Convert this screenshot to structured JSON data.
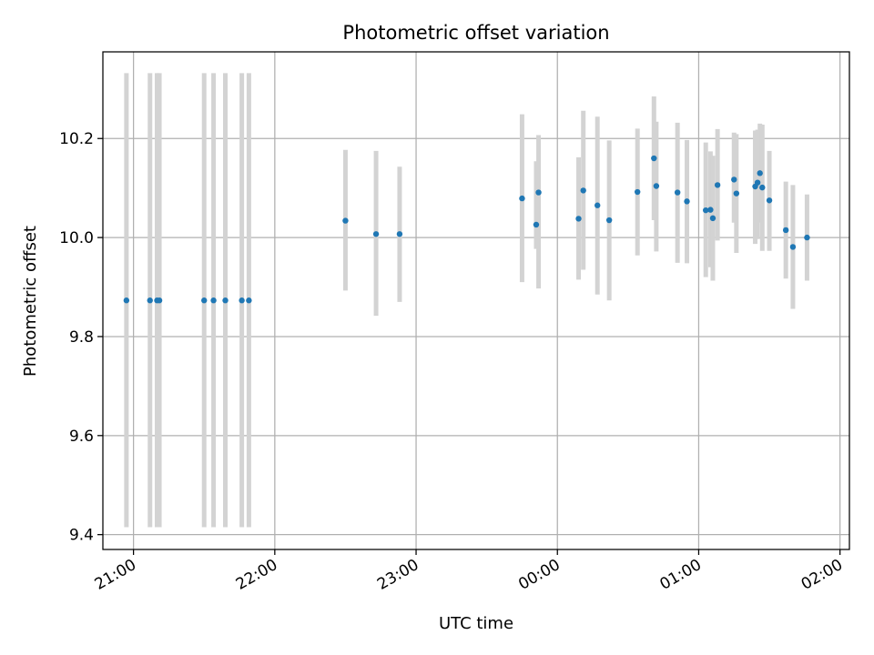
{
  "chart_data": {
    "type": "scatter",
    "title": "Photometric offset variation",
    "xlabel": "UTC time",
    "ylabel": "Photometric offset",
    "xlim": [
      "20:47",
      "02:04"
    ],
    "ylim": [
      9.37,
      10.375
    ],
    "x_ticks": [
      "21:00",
      "22:00",
      "23:00",
      "00:00",
      "01:00",
      "02:00"
    ],
    "y_ticks": [
      9.4,
      9.6,
      9.8,
      10.0,
      10.2
    ],
    "grid": true,
    "colors": {
      "point": "#1f77b4",
      "errorbar": "#d3d3d3",
      "grid": "#b0b0b0"
    },
    "points": [
      {
        "t": "20:57",
        "y": 9.873,
        "lo": 9.415,
        "hi": 10.332
      },
      {
        "t": "21:07",
        "y": 9.873,
        "lo": 9.415,
        "hi": 10.332
      },
      {
        "t": "21:10",
        "y": 9.873,
        "lo": 9.415,
        "hi": 10.332
      },
      {
        "t": "21:11",
        "y": 9.873,
        "lo": 9.415,
        "hi": 10.332
      },
      {
        "t": "21:30",
        "y": 9.873,
        "lo": 9.415,
        "hi": 10.332
      },
      {
        "t": "21:34",
        "y": 9.873,
        "lo": 9.415,
        "hi": 10.332
      },
      {
        "t": "21:39",
        "y": 9.873,
        "lo": 9.415,
        "hi": 10.332
      },
      {
        "t": "21:46",
        "y": 9.873,
        "lo": 9.415,
        "hi": 10.332
      },
      {
        "t": "21:49",
        "y": 9.873,
        "lo": 9.415,
        "hi": 10.332
      },
      {
        "t": "22:30",
        "y": 10.034,
        "lo": 9.893,
        "hi": 10.177
      },
      {
        "t": "22:43",
        "y": 10.007,
        "lo": 9.842,
        "hi": 10.175
      },
      {
        "t": "22:53",
        "y": 10.007,
        "lo": 9.87,
        "hi": 10.143
      },
      {
        "t": "23:45",
        "y": 10.079,
        "lo": 9.91,
        "hi": 10.249
      },
      {
        "t": "23:51",
        "y": 10.026,
        "lo": 9.977,
        "hi": 10.154
      },
      {
        "t": "23:52",
        "y": 10.091,
        "lo": 9.897,
        "hi": 10.207
      },
      {
        "t": "00:09",
        "y": 10.038,
        "lo": 9.915,
        "hi": 10.162
      },
      {
        "t": "00:11",
        "y": 10.095,
        "lo": 9.935,
        "hi": 10.256
      },
      {
        "t": "00:17",
        "y": 10.065,
        "lo": 9.885,
        "hi": 10.244
      },
      {
        "t": "00:22",
        "y": 10.035,
        "lo": 9.873,
        "hi": 10.196
      },
      {
        "t": "00:34",
        "y": 10.092,
        "lo": 9.964,
        "hi": 10.22
      },
      {
        "t": "00:41",
        "y": 10.16,
        "lo": 10.035,
        "hi": 10.285
      },
      {
        "t": "00:42",
        "y": 10.104,
        "lo": 9.972,
        "hi": 10.234
      },
      {
        "t": "00:51",
        "y": 10.091,
        "lo": 9.949,
        "hi": 10.232
      },
      {
        "t": "00:55",
        "y": 10.073,
        "lo": 9.948,
        "hi": 10.197
      },
      {
        "t": "01:03",
        "y": 10.055,
        "lo": 9.92,
        "hi": 10.192
      },
      {
        "t": "01:05",
        "y": 10.056,
        "lo": 9.94,
        "hi": 10.174
      },
      {
        "t": "01:06",
        "y": 10.039,
        "lo": 9.913,
        "hi": 10.165
      },
      {
        "t": "01:08",
        "y": 10.106,
        "lo": 9.994,
        "hi": 10.219
      },
      {
        "t": "01:15",
        "y": 10.117,
        "lo": 10.03,
        "hi": 10.212
      },
      {
        "t": "01:16",
        "y": 10.089,
        "lo": 9.969,
        "hi": 10.209
      },
      {
        "t": "01:24",
        "y": 10.103,
        "lo": 9.987,
        "hi": 10.216
      },
      {
        "t": "01:25",
        "y": 10.111,
        "lo": 9.997,
        "hi": 10.218
      },
      {
        "t": "01:26",
        "y": 10.13,
        "lo": 10.03,
        "hi": 10.23
      },
      {
        "t": "01:27",
        "y": 10.101,
        "lo": 9.973,
        "hi": 10.228
      },
      {
        "t": "01:30",
        "y": 10.075,
        "lo": 9.973,
        "hi": 10.175
      },
      {
        "t": "01:37",
        "y": 10.015,
        "lo": 9.917,
        "hi": 10.113
      },
      {
        "t": "01:40",
        "y": 9.981,
        "lo": 9.856,
        "hi": 10.106
      },
      {
        "t": "01:46",
        "y": 10.0,
        "lo": 9.913,
        "hi": 10.087
      }
    ]
  }
}
